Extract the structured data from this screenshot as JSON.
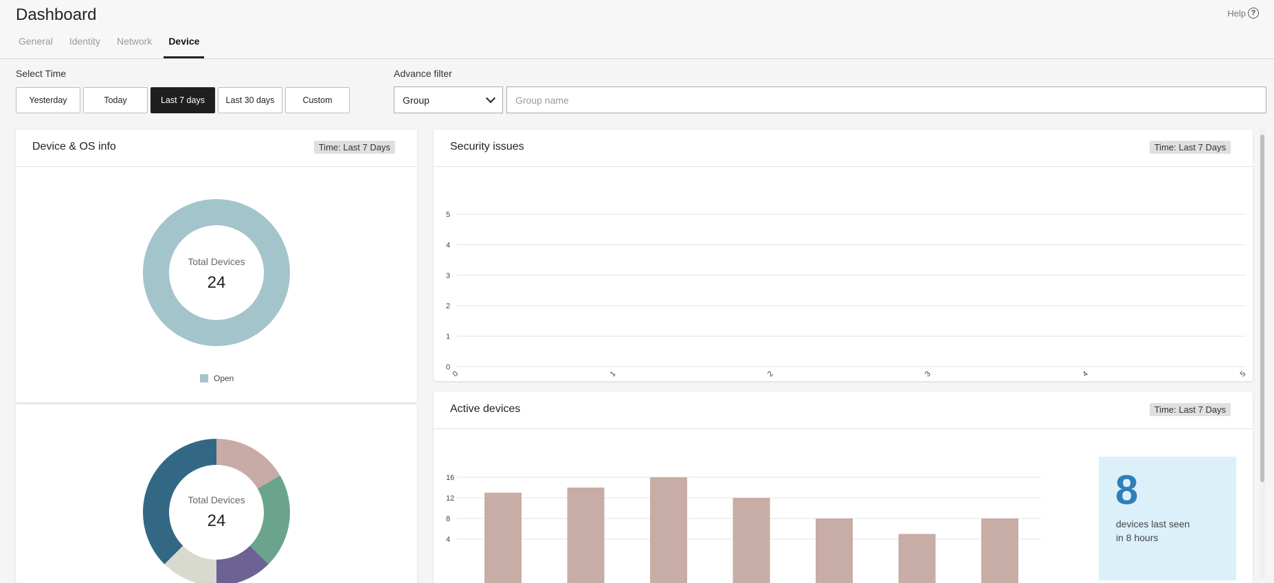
{
  "header": {
    "title": "Dashboard",
    "help_label": "Help",
    "help_icon_glyph": "?",
    "tabs": [
      {
        "label": "General",
        "active": false
      },
      {
        "label": "Identity",
        "active": false
      },
      {
        "label": "Network",
        "active": false
      },
      {
        "label": "Device",
        "active": true
      }
    ]
  },
  "filters": {
    "select_time_label": "Select Time",
    "time_options": [
      "Yesterday",
      "Today",
      "Last 7 days",
      "Last 30 days",
      "Custom"
    ],
    "selected_time": "Last 7 days",
    "advance_filter_label": "Advance filter",
    "group_select_value": "Group",
    "group_name_placeholder": "Group name",
    "group_name_value": ""
  },
  "device_os_card": {
    "title": "Device & OS info",
    "time_badge": "Time: Last 7 Days",
    "donut1": {
      "center_label": "Total Devices",
      "center_value": "24",
      "legend": [
        {
          "label": "Open",
          "color": "#a3c4ca"
        }
      ]
    },
    "donut2": {
      "center_label": "Total Devices",
      "center_value": "24"
    }
  },
  "security_card": {
    "title": "Security issues",
    "time_badge": "Time: Last 7 Days"
  },
  "active_card": {
    "title": "Active devices",
    "time_badge": "Time: Last 7 Days",
    "stat_value": "8",
    "stat_text_line1": "devices last seen",
    "stat_text_line2": "in 8 hours"
  },
  "colors": {
    "donut1": "#a3c4ca",
    "donut2_segments": [
      "#c8aaa6",
      "#6aa48c",
      "#6e6294",
      "#d9dacf",
      "#336885"
    ],
    "bars": "#c8aca6",
    "accent_dark": "#1f1f1f",
    "stat_bg": "#dcf0fa",
    "stat_value": "#2f7fb8"
  },
  "chart_data": [
    {
      "type": "pie",
      "series": [
        {
          "name": "Open",
          "values": [
            24
          ]
        }
      ],
      "center_label": "Total Devices",
      "center_value": 24
    },
    {
      "type": "pie",
      "values": [
        4,
        5,
        3,
        3,
        9
      ],
      "center_label": "Total Devices",
      "center_value": 24
    },
    {
      "type": "line",
      "title": "Security issues",
      "x_ticks": [
        0,
        1,
        2,
        3,
        4,
        5
      ],
      "y_ticks": [
        0,
        1,
        2,
        3,
        4,
        5
      ],
      "xlim": [
        0,
        5
      ],
      "ylim": [
        0,
        5
      ],
      "series": [],
      "grid": true
    },
    {
      "type": "bar",
      "title": "Active devices",
      "values": [
        13,
        14,
        16,
        12,
        8,
        5,
        8
      ],
      "y_ticks": [
        4,
        8,
        12,
        16
      ],
      "ylim": [
        0,
        16
      ],
      "grid": true
    }
  ]
}
